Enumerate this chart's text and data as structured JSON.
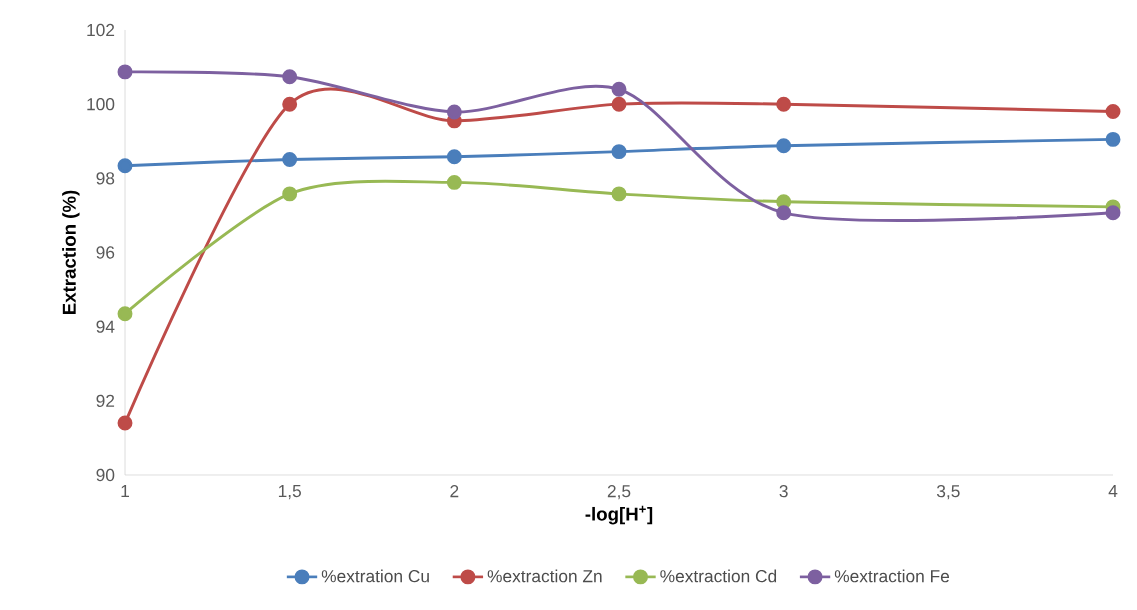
{
  "chart_data": {
    "type": "line",
    "xlabel": "-log[H$^{+}$]",
    "ylabel": "Extraction (%)",
    "x": [
      1,
      1.5,
      2,
      2.5,
      3,
      4
    ],
    "series": [
      {
        "name": "%extration Cu",
        "color": "#4a7ebb",
        "values": [
          98.34,
          98.51,
          98.58,
          98.72,
          98.88,
          99.05
        ]
      },
      {
        "name": "%extraction Zn",
        "color": "#be4b48",
        "values": [
          91.4,
          100,
          99.55,
          100,
          100,
          99.8
        ]
      },
      {
        "name": "%extraction Cd",
        "color": "#98b954",
        "values": [
          94.35,
          97.58,
          97.89,
          97.58,
          97.37,
          97.23
        ]
      },
      {
        "name": "%extraction Fe",
        "color": "#7d60a0",
        "values": [
          100.87,
          100.74,
          99.79,
          100.4,
          97.07,
          97.07
        ]
      }
    ],
    "xlim": [
      1,
      4
    ],
    "ylim": [
      90,
      102
    ],
    "xticks": [
      1,
      {
        "value": 1.5,
        "label": "1,5"
      },
      2,
      {
        "value": 2.5,
        "label": "2,5"
      },
      3,
      {
        "value": 3.5,
        "label": "3,5"
      },
      4
    ],
    "yticks": [
      90,
      92,
      94,
      96,
      98,
      100,
      102
    ],
    "grid": false,
    "legend": "bottom",
    "marker": "circle",
    "line_style": "solid"
  }
}
